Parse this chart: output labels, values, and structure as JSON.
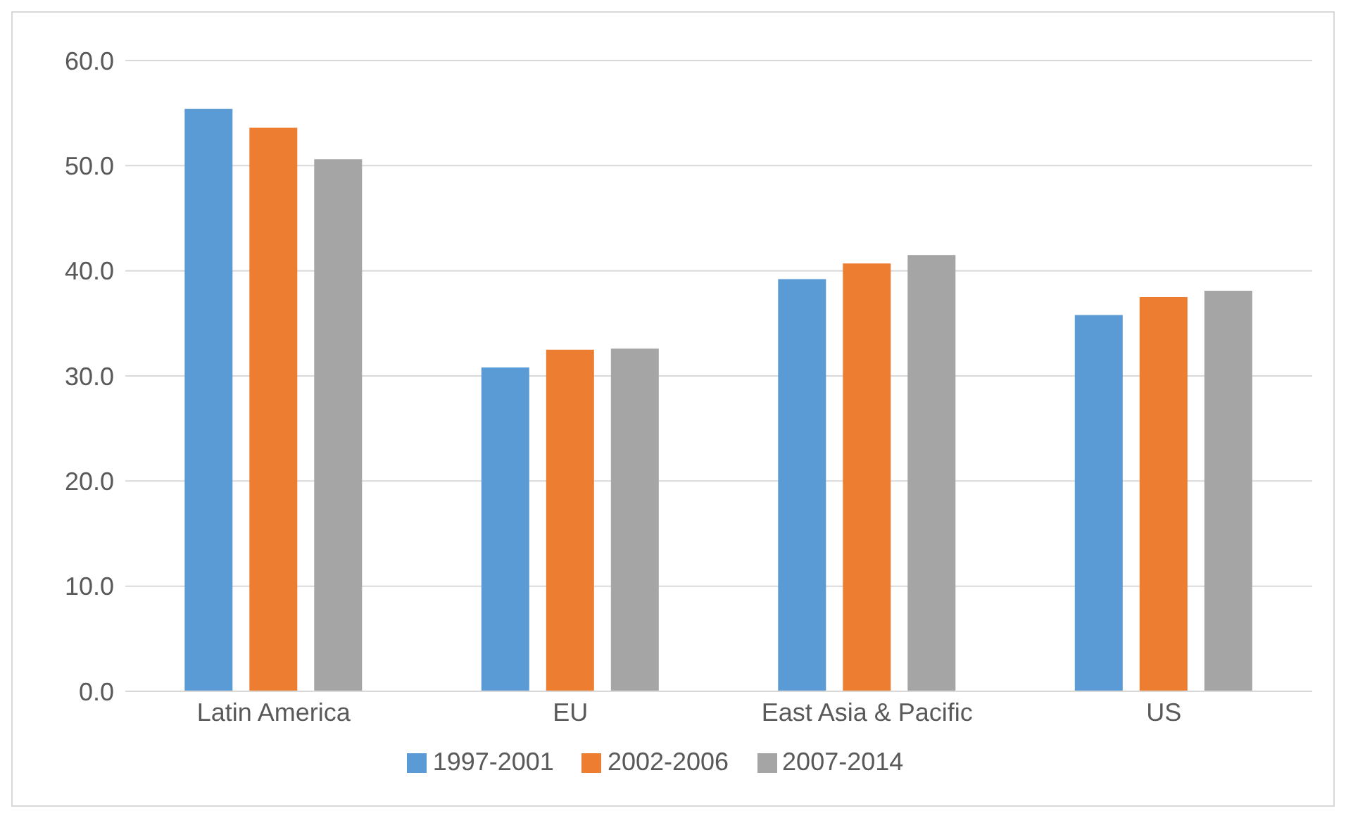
{
  "chart_data": {
    "type": "bar",
    "categories": [
      "Latin America",
      "EU",
      "East Asia & Pacific",
      "US"
    ],
    "series": [
      {
        "name": "1997-2001",
        "color": "#5b9bd5",
        "values": [
          55.4,
          30.8,
          39.2,
          35.8
        ]
      },
      {
        "name": "2002-2006",
        "color": "#ed7d31",
        "values": [
          53.6,
          32.5,
          40.7,
          37.5
        ]
      },
      {
        "name": "2007-2014",
        "color": "#a5a5a5",
        "values": [
          50.6,
          32.6,
          41.5,
          38.1
        ]
      }
    ],
    "ylim": [
      0,
      60
    ],
    "yticks": [
      {
        "value": 0,
        "label": "0.0"
      },
      {
        "value": 10,
        "label": "10.0"
      },
      {
        "value": 20,
        "label": "20.0"
      },
      {
        "value": 30,
        "label": "30.0"
      },
      {
        "value": 40,
        "label": "40.0"
      },
      {
        "value": 50,
        "label": "50.0"
      },
      {
        "value": 60,
        "label": "60.0"
      }
    ],
    "grid": "y",
    "legend": "bottom"
  }
}
